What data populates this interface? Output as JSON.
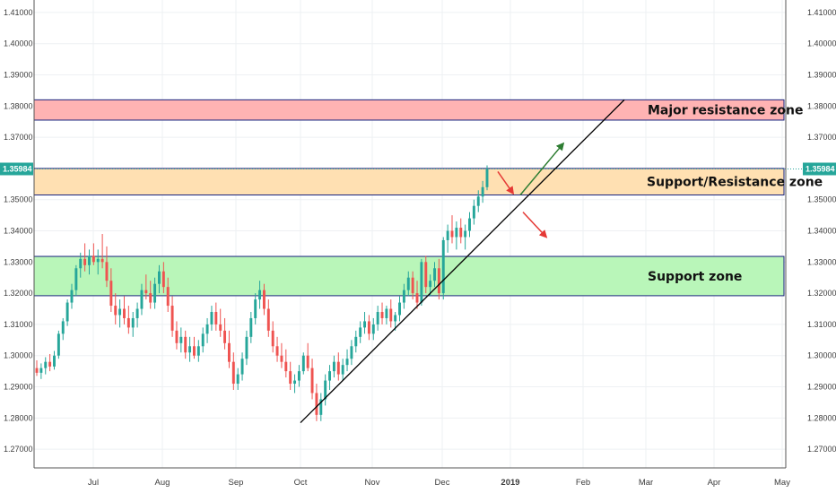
{
  "chart_data": {
    "type": "candlestick",
    "y_axis": {
      "range": [
        1.264,
        1.414
      ],
      "ticks": [
        "1.27000",
        "1.28000",
        "1.29000",
        "1.30000",
        "1.31000",
        "1.32000",
        "1.33000",
        "1.34000",
        "1.35000",
        "1.36000",
        "1.37000",
        "1.38000",
        "1.39000",
        "1.40000",
        "1.41000"
      ]
    },
    "x_axis": {
      "ticks": [
        "Jul",
        "Aug",
        "Sep",
        "Oct",
        "Nov",
        "Dec",
        "2019",
        "Feb",
        "Mar",
        "Apr",
        "May"
      ]
    },
    "last_price": {
      "label": "1.35984",
      "value": 1.35984,
      "color": "#26a69a"
    },
    "zones": [
      {
        "label": "Major resistance zone",
        "low": 1.3755,
        "high": 1.382,
        "fill": "#ffb3b3",
        "border": "#1a237e"
      },
      {
        "label": "Support/Resistance zone",
        "low": 1.3515,
        "high": 1.36,
        "fill": "#ffe0b2",
        "border": "#1a237e"
      },
      {
        "label": "Support zone",
        "low": 1.3192,
        "high": 1.3318,
        "fill": "#b9f6b9",
        "border": "#1a237e"
      }
    ],
    "trendline": {
      "start": [
        "Oct",
        1.2785
      ],
      "end": [
        "Feb",
        1.382
      ],
      "color": "#000000"
    },
    "arrows": [
      {
        "color": "#2e7d32",
        "from": 1.3515,
        "to": 1.368
      },
      {
        "color": "#e53935",
        "from": 1.359,
        "to": 1.352
      },
      {
        "color": "#e53935",
        "from": 1.346,
        "to": 1.338
      }
    ],
    "candles": [
      [
        1.296,
        1.2985,
        1.2935,
        1.2945
      ],
      [
        1.2945,
        1.2975,
        1.2925,
        1.296
      ],
      [
        1.296,
        1.2995,
        1.294,
        1.298
      ],
      [
        1.298,
        1.3005,
        1.295,
        1.2965
      ],
      [
        1.2965,
        1.3015,
        1.2955,
        1.3
      ],
      [
        1.3,
        1.308,
        1.299,
        1.307
      ],
      [
        1.307,
        1.312,
        1.305,
        1.311
      ],
      [
        1.311,
        1.318,
        1.3095,
        1.317
      ],
      [
        1.317,
        1.323,
        1.315,
        1.321
      ],
      [
        1.321,
        1.329,
        1.319,
        1.328
      ],
      [
        1.328,
        1.333,
        1.325,
        1.331
      ],
      [
        1.331,
        1.336,
        1.327,
        1.329
      ],
      [
        1.329,
        1.334,
        1.326,
        1.332
      ],
      [
        1.332,
        1.336,
        1.329,
        1.33
      ],
      [
        1.33,
        1.334,
        1.326,
        1.331
      ],
      [
        1.331,
        1.339,
        1.328,
        1.33
      ],
      [
        1.33,
        1.335,
        1.322,
        1.324
      ],
      [
        1.324,
        1.328,
        1.314,
        1.316
      ],
      [
        1.316,
        1.32,
        1.31,
        1.313
      ],
      [
        1.313,
        1.318,
        1.309,
        1.315
      ],
      [
        1.315,
        1.319,
        1.31,
        1.312
      ],
      [
        1.312,
        1.316,
        1.307,
        1.309
      ],
      [
        1.309,
        1.314,
        1.306,
        1.312
      ],
      [
        1.312,
        1.317,
        1.309,
        1.315
      ],
      [
        1.315,
        1.323,
        1.313,
        1.321
      ],
      [
        1.321,
        1.326,
        1.318,
        1.32
      ],
      [
        1.32,
        1.324,
        1.315,
        1.317
      ],
      [
        1.317,
        1.325,
        1.315,
        1.323
      ],
      [
        1.323,
        1.329,
        1.32,
        1.327
      ],
      [
        1.327,
        1.33,
        1.32,
        1.322
      ],
      [
        1.322,
        1.325,
        1.314,
        1.316
      ],
      [
        1.316,
        1.319,
        1.306,
        1.308
      ],
      [
        1.308,
        1.311,
        1.302,
        1.304
      ],
      [
        1.304,
        1.309,
        1.301,
        1.306
      ],
      [
        1.306,
        1.308,
        1.299,
        1.301
      ],
      [
        1.301,
        1.306,
        1.298,
        1.303
      ],
      [
        1.303,
        1.306,
        1.299,
        1.3
      ],
      [
        1.3,
        1.305,
        1.298,
        1.303
      ],
      [
        1.303,
        1.309,
        1.301,
        1.307
      ],
      [
        1.307,
        1.312,
        1.304,
        1.31
      ],
      [
        1.31,
        1.316,
        1.308,
        1.314
      ],
      [
        1.314,
        1.317,
        1.308,
        1.31
      ],
      [
        1.31,
        1.315,
        1.306,
        1.308
      ],
      [
        1.308,
        1.312,
        1.302,
        1.304
      ],
      [
        1.304,
        1.308,
        1.296,
        1.298
      ],
      [
        1.298,
        1.301,
        1.289,
        1.291
      ],
      [
        1.291,
        1.296,
        1.289,
        1.294
      ],
      [
        1.294,
        1.301,
        1.292,
        1.299
      ],
      [
        1.299,
        1.308,
        1.297,
        1.306
      ],
      [
        1.306,
        1.314,
        1.304,
        1.312
      ],
      [
        1.312,
        1.32,
        1.31,
        1.318
      ],
      [
        1.318,
        1.324,
        1.315,
        1.321
      ],
      [
        1.321,
        1.323,
        1.313,
        1.315
      ],
      [
        1.315,
        1.318,
        1.306,
        1.308
      ],
      [
        1.308,
        1.311,
        1.301,
        1.303
      ],
      [
        1.303,
        1.306,
        1.298,
        1.3
      ],
      [
        1.3,
        1.304,
        1.296,
        1.298
      ],
      [
        1.298,
        1.302,
        1.293,
        1.295
      ],
      [
        1.295,
        1.298,
        1.289,
        1.291
      ],
      [
        1.291,
        1.294,
        1.288,
        1.292
      ],
      [
        1.292,
        1.297,
        1.29,
        1.295
      ],
      [
        1.295,
        1.301,
        1.294,
        1.3
      ],
      [
        1.3,
        1.304,
        1.295,
        1.296
      ],
      [
        1.296,
        1.299,
        1.286,
        1.288
      ],
      [
        1.288,
        1.291,
        1.279,
        1.281
      ],
      [
        1.281,
        1.288,
        1.279,
        1.286
      ],
      [
        1.286,
        1.294,
        1.284,
        1.292
      ],
      [
        1.292,
        1.297,
        1.289,
        1.295
      ],
      [
        1.295,
        1.3,
        1.293,
        1.298
      ],
      [
        1.298,
        1.301,
        1.292,
        1.294
      ],
      [
        1.294,
        1.299,
        1.292,
        1.297
      ],
      [
        1.297,
        1.302,
        1.295,
        1.299
      ],
      [
        1.299,
        1.305,
        1.297,
        1.303
      ],
      [
        1.303,
        1.308,
        1.301,
        1.306
      ],
      [
        1.306,
        1.311,
        1.304,
        1.309
      ],
      [
        1.309,
        1.314,
        1.307,
        1.311
      ],
      [
        1.311,
        1.313,
        1.305,
        1.307
      ],
      [
        1.307,
        1.312,
        1.305,
        1.31
      ],
      [
        1.31,
        1.316,
        1.308,
        1.314
      ],
      [
        1.314,
        1.317,
        1.31,
        1.312
      ],
      [
        1.312,
        1.316,
        1.31,
        1.315
      ],
      [
        1.315,
        1.318,
        1.309,
        1.311
      ],
      [
        1.311,
        1.314,
        1.308,
        1.313
      ],
      [
        1.313,
        1.319,
        1.311,
        1.317
      ],
      [
        1.317,
        1.323,
        1.315,
        1.321
      ],
      [
        1.321,
        1.327,
        1.319,
        1.325
      ],
      [
        1.325,
        1.327,
        1.318,
        1.32
      ],
      [
        1.32,
        1.324,
        1.315,
        1.317
      ],
      [
        1.317,
        1.331,
        1.316,
        1.33
      ],
      [
        1.33,
        1.332,
        1.32,
        1.322
      ],
      [
        1.322,
        1.326,
        1.319,
        1.324
      ],
      [
        1.324,
        1.33,
        1.322,
        1.328
      ],
      [
        1.328,
        1.331,
        1.318,
        1.32
      ],
      [
        1.32,
        1.338,
        1.318,
        1.337
      ],
      [
        1.337,
        1.342,
        1.333,
        1.34
      ],
      [
        1.34,
        1.345,
        1.336,
        1.338
      ],
      [
        1.338,
        1.343,
        1.334,
        1.341
      ],
      [
        1.341,
        1.344,
        1.336,
        1.338
      ],
      [
        1.338,
        1.342,
        1.334,
        1.34
      ],
      [
        1.34,
        1.346,
        1.338,
        1.344
      ],
      [
        1.344,
        1.35,
        1.342,
        1.348
      ],
      [
        1.348,
        1.353,
        1.346,
        1.351
      ],
      [
        1.351,
        1.356,
        1.349,
        1.354
      ],
      [
        1.354,
        1.361,
        1.353,
        1.3598
      ]
    ]
  }
}
